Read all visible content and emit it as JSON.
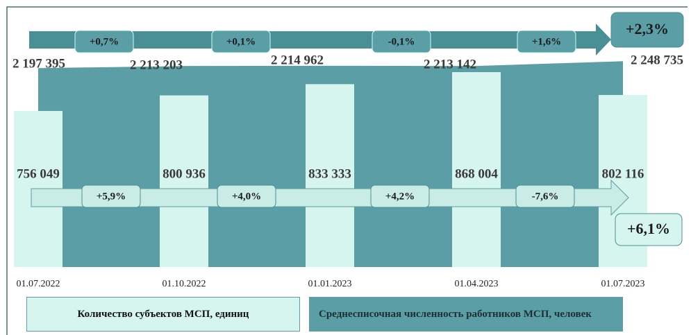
{
  "chart_data": {
    "type": "bar",
    "categories": [
      "01.07.2022",
      "01.10.2022",
      "01.01.2023",
      "01.04.2023",
      "01.07.2023"
    ],
    "series": [
      {
        "name": "Количество субъектов МСП, единиц",
        "color": "#d6f5ee",
        "values": [
          756049,
          800936,
          833333,
          868004,
          802116
        ],
        "value_labels": [
          "756 049",
          "800 936",
          "833 333",
          "868 004",
          "802 116"
        ],
        "changes": [
          "+5,9%",
          "+4,0%",
          "+4,2%",
          "-7,6%"
        ],
        "total_change": "+6,1%"
      },
      {
        "name": "Среднесписочная численность работников МСП, человек",
        "color": "#5b9ea6",
        "type": "area",
        "axis": "y2",
        "values": [
          2197395,
          2213203,
          2214962,
          2213142,
          2248735
        ],
        "value_labels": [
          "2 197 395",
          "2 213 203",
          "2 214 962",
          "2 213 142",
          "2 248 735"
        ],
        "changes": [
          "+0,7%",
          "+0,1%",
          "-0,1%",
          "+1,6%"
        ],
        "total_change": "+2,3%"
      }
    ],
    "ylim": [
      306000,
      876000
    ],
    "y2lim": [
      725000,
      2250000
    ]
  }
}
